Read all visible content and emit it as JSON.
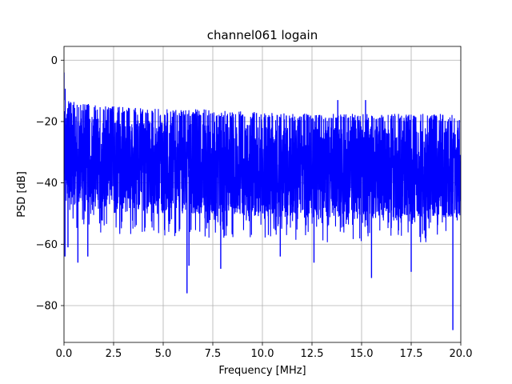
{
  "chart_data": {
    "type": "line",
    "title": "channel061 logain",
    "xlabel": "Frequency [MHz]",
    "ylabel": "PSD [dB]",
    "xlim": [
      0,
      20
    ],
    "ylim": [
      -92,
      4.5
    ],
    "xticks": [
      0,
      2.5,
      5,
      7.5,
      10,
      12.5,
      15,
      17.5,
      20
    ],
    "xtick_labels": [
      "0.0",
      "2.5",
      "5.0",
      "7.5",
      "10.0",
      "12.5",
      "15.0",
      "17.5",
      "20.0"
    ],
    "yticks": [
      0,
      -20,
      -40,
      -60,
      -80
    ],
    "ytick_labels": [
      "0",
      "−20",
      "−40",
      "−60",
      "−80"
    ],
    "grid": true,
    "series": [
      {
        "color": "#0000ff",
        "description": "dense noisy PSD trace, upper envelope near -13 to -18 dB, band mostly -20 to -50 dB",
        "envelope_upper": [
          [
            0.0,
            -5
          ],
          [
            0.1,
            -10
          ],
          [
            0.3,
            -13
          ],
          [
            1.0,
            -14
          ],
          [
            2.5,
            -15
          ],
          [
            5.0,
            -16
          ],
          [
            7.5,
            -16
          ],
          [
            10.0,
            -17
          ],
          [
            12.5,
            -17.5
          ],
          [
            15.0,
            -17.5
          ],
          [
            17.5,
            -17.5
          ],
          [
            20.0,
            -17.5
          ]
        ],
        "notable_minima": [
          [
            0.05,
            -64
          ],
          [
            0.2,
            -61
          ],
          [
            0.7,
            -66
          ],
          [
            1.2,
            -64
          ],
          [
            6.2,
            -76
          ],
          [
            6.3,
            -67
          ],
          [
            7.9,
            -68
          ],
          [
            10.9,
            -64
          ],
          [
            12.6,
            -66
          ],
          [
            15.5,
            -71
          ],
          [
            17.5,
            -69
          ],
          [
            19.6,
            -88
          ]
        ],
        "notable_maxima": [
          [
            0.0,
            -4
          ],
          [
            13.8,
            -13
          ],
          [
            15.2,
            -13
          ]
        ]
      }
    ]
  }
}
